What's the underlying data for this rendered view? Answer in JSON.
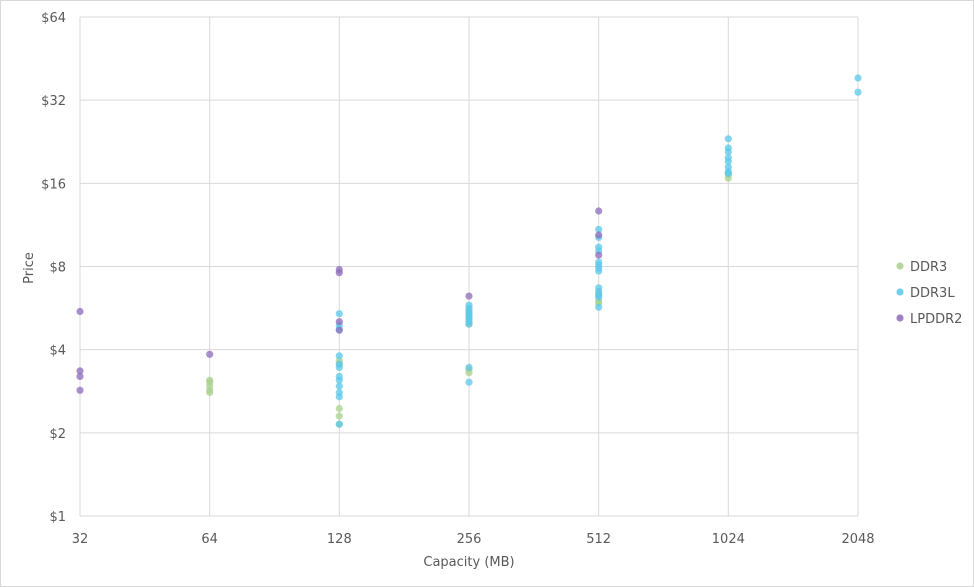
{
  "chart_data": {
    "type": "scatter",
    "xlabel": "Capacity (MB)",
    "ylabel": "Price",
    "x_scale": "log2",
    "y_scale": "log2",
    "xlim": [
      32,
      2048
    ],
    "ylim": [
      1,
      64
    ],
    "x_ticks": [
      "32",
      "64",
      "128",
      "256",
      "512",
      "1024",
      "2048"
    ],
    "y_ticks": [
      "$1",
      "$2",
      "$4",
      "$8",
      "$16",
      "$32",
      "$64"
    ],
    "grid": true,
    "legend_position": "right",
    "series": [
      {
        "name": "DDR3",
        "color": "#a9d18e",
        "points": [
          [
            64,
            3.1
          ],
          [
            64,
            3.05
          ],
          [
            64,
            2.95
          ],
          [
            64,
            2.85
          ],
          [
            64,
            2.8
          ],
          [
            128,
            2.45
          ],
          [
            128,
            2.3
          ],
          [
            128,
            2.15
          ],
          [
            128,
            3.55
          ],
          [
            128,
            3.65
          ],
          [
            256,
            4.95
          ],
          [
            256,
            3.4
          ],
          [
            256,
            3.3
          ],
          [
            512,
            6.0
          ],
          [
            512,
            5.9
          ],
          [
            512,
            6.4
          ],
          [
            1024,
            16.7
          ],
          [
            1024,
            17.2
          ]
        ]
      },
      {
        "name": "DDR3L",
        "color": "#5bc8e8",
        "points": [
          [
            128,
            5.4
          ],
          [
            128,
            4.9
          ],
          [
            128,
            4.75
          ],
          [
            128,
            3.8
          ],
          [
            128,
            3.55
          ],
          [
            128,
            3.45
          ],
          [
            128,
            3.2
          ],
          [
            128,
            3.1
          ],
          [
            128,
            2.95
          ],
          [
            128,
            2.8
          ],
          [
            128,
            2.7
          ],
          [
            128,
            2.15
          ],
          [
            256,
            5.8
          ],
          [
            256,
            5.65
          ],
          [
            256,
            5.55
          ],
          [
            256,
            5.45
          ],
          [
            256,
            5.35
          ],
          [
            256,
            5.25
          ],
          [
            256,
            5.15
          ],
          [
            256,
            5.05
          ],
          [
            256,
            4.95
          ],
          [
            256,
            3.45
          ],
          [
            256,
            3.05
          ],
          [
            512,
            10.9
          ],
          [
            512,
            10.2
          ],
          [
            512,
            9.4
          ],
          [
            512,
            9.1
          ],
          [
            512,
            8.3
          ],
          [
            512,
            8.1
          ],
          [
            512,
            7.9
          ],
          [
            512,
            7.7
          ],
          [
            512,
            6.7
          ],
          [
            512,
            6.5
          ],
          [
            512,
            6.3
          ],
          [
            512,
            6.2
          ],
          [
            512,
            5.7
          ],
          [
            1024,
            23.2
          ],
          [
            1024,
            21.5
          ],
          [
            1024,
            20.8
          ],
          [
            1024,
            19.8
          ],
          [
            1024,
            19.2
          ],
          [
            1024,
            18.3
          ],
          [
            1024,
            17.6
          ],
          [
            1024,
            17.4
          ],
          [
            2048,
            38.5
          ],
          [
            2048,
            34.2
          ]
        ]
      },
      {
        "name": "LPDDR2",
        "color": "#8e6bb9",
        "points": [
          [
            32,
            5.5
          ],
          [
            32,
            3.35
          ],
          [
            32,
            3.2
          ],
          [
            32,
            2.85
          ],
          [
            64,
            3.85
          ],
          [
            128,
            7.8
          ],
          [
            128,
            7.6
          ],
          [
            128,
            5.05
          ],
          [
            128,
            4.7
          ],
          [
            256,
            6.25
          ],
          [
            512,
            12.7
          ],
          [
            512,
            10.4
          ],
          [
            512,
            8.8
          ]
        ]
      }
    ]
  }
}
